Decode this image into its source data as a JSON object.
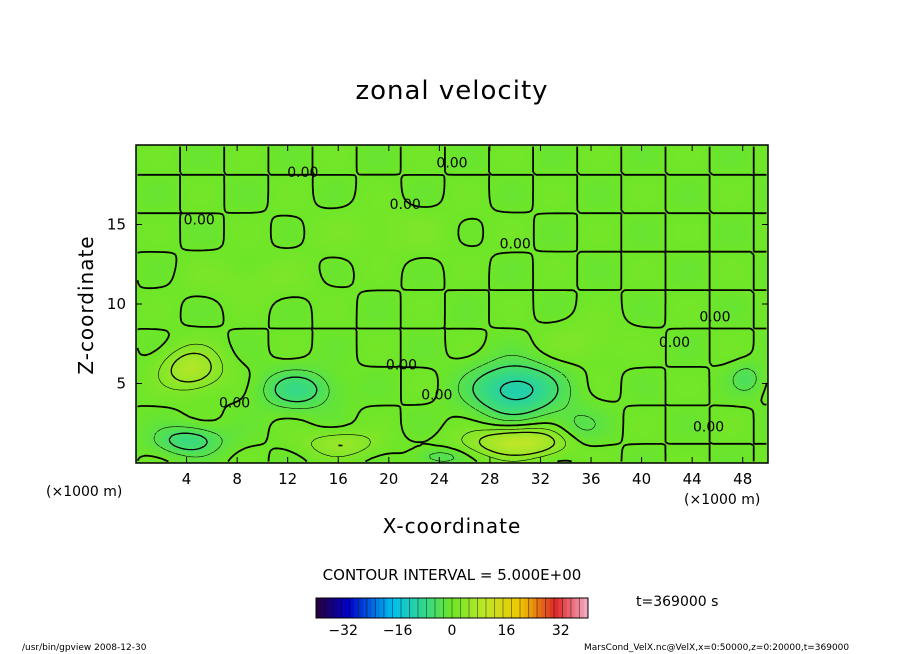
{
  "chart_data": {
    "type": "heatmap",
    "title": "zonal velocity",
    "xlabel": "X-coordinate",
    "ylabel": "Z-coordinate",
    "x_unit_left": "(×1000 m)",
    "x_unit_right": "(×1000 m)",
    "xlim": [
      0,
      50
    ],
    "ylim": [
      0,
      20
    ],
    "x_ticks": [
      4,
      8,
      12,
      16,
      20,
      24,
      28,
      32,
      36,
      40,
      44,
      48
    ],
    "y_ticks": [
      5,
      10,
      15
    ],
    "contour_interval_text": "CONTOUR INTERVAL = 5.000E+00",
    "contour_label": "0.00",
    "contour_label_positions": [
      {
        "x": 13.2,
        "y": 18.3
      },
      {
        "x": 25.0,
        "y": 18.9
      },
      {
        "x": 5.0,
        "y": 15.3
      },
      {
        "x": 21.3,
        "y": 16.3
      },
      {
        "x": 30.0,
        "y": 13.8
      },
      {
        "x": 45.8,
        "y": 9.2
      },
      {
        "x": 42.6,
        "y": 7.6
      },
      {
        "x": 7.8,
        "y": 3.8
      },
      {
        "x": 21.0,
        "y": 6.2
      },
      {
        "x": 23.8,
        "y": 4.3
      },
      {
        "x": 45.3,
        "y": 2.3
      }
    ],
    "extrema": [
      {
        "x": 4.4,
        "y": 5.9,
        "value": 8,
        "sx": 2.3,
        "sy": 1.3
      },
      {
        "x": 30.3,
        "y": 1.3,
        "value": 10,
        "sx": 3.8,
        "sy": 0.9
      },
      {
        "x": 30.0,
        "y": 4.6,
        "value": -12,
        "sx": 3.3,
        "sy": 1.6
      },
      {
        "x": 12.8,
        "y": 4.6,
        "value": -7,
        "sx": 2.8,
        "sy": 1.2
      },
      {
        "x": 4.2,
        "y": 1.4,
        "value": -7,
        "sx": 2.6,
        "sy": 0.9
      },
      {
        "x": 16.2,
        "y": 1.2,
        "value": 5,
        "sx": 2.8,
        "sy": 0.8
      },
      {
        "x": 35.0,
        "y": 2.2,
        "value": -3,
        "sx": 2.0,
        "sy": 1.3
      },
      {
        "x": 48.3,
        "y": 5.3,
        "value": -4,
        "sx": 1.2,
        "sy": 0.9
      },
      {
        "x": 35.5,
        "y": 7.6,
        "value": 2,
        "sx": 3.0,
        "sy": 1.3
      },
      {
        "x": 24.0,
        "y": 0.4,
        "value": -4,
        "sx": 1.8,
        "sy": 0.5
      },
      {
        "x": 20.0,
        "y": 14.5,
        "value": 1.5,
        "sx": 6.0,
        "sy": 1.5
      },
      {
        "x": 9.0,
        "y": 11.5,
        "value": 1.5,
        "sx": 5.0,
        "sy": 1.2
      }
    ],
    "colorbar": {
      "range": [
        -40,
        40
      ],
      "ticks": [
        -32,
        -16,
        0,
        16,
        32
      ],
      "tick_labels": [
        "−32",
        "−16",
        "0",
        "16",
        "32"
      ]
    },
    "time_text": "t=369000 s"
  },
  "footer": {
    "left": "/usr/bin/gpview   2008-12-30",
    "right": "MarsCond_VelX.nc@VelX,x=0:50000,z=0:20000,t=369000"
  }
}
